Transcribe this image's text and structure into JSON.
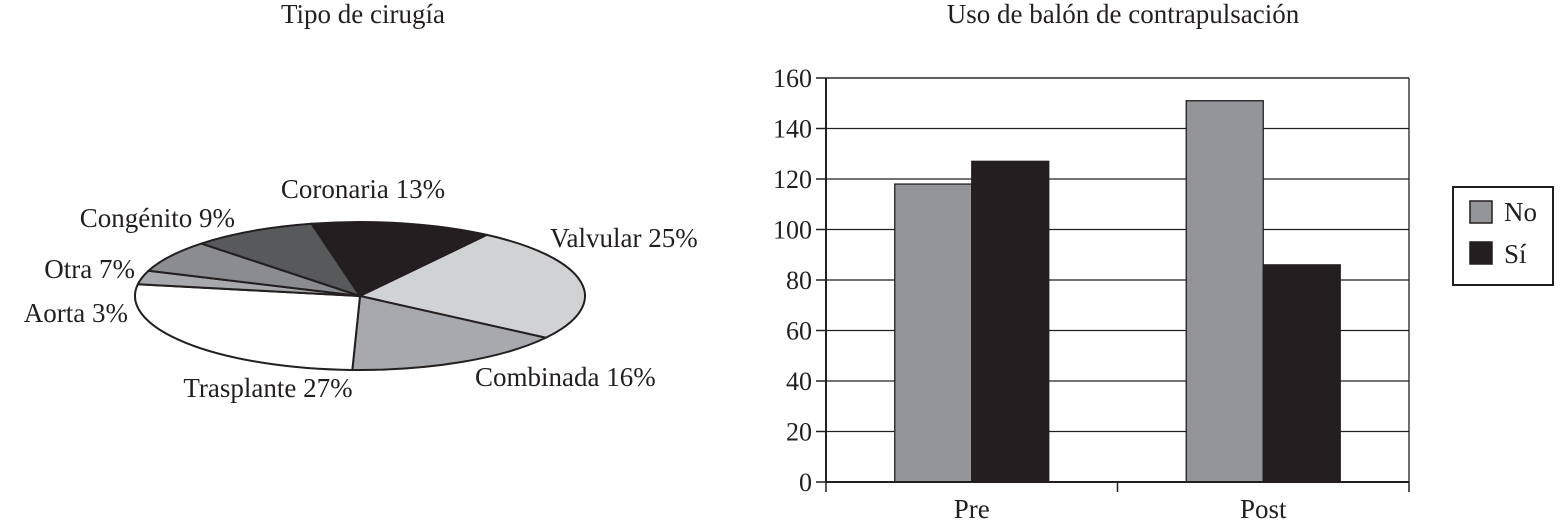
{
  "chart_data": [
    {
      "type": "pie",
      "title": "Tipo de cirugía",
      "slices": [
        {
          "label": "Coronaria 13%",
          "category": "Coronaria",
          "value": 13,
          "color": "#231f20"
        },
        {
          "label": "Valvular 25%",
          "category": "Valvular",
          "value": 25,
          "color": "#d1d2d4"
        },
        {
          "label": "Combinada 16%",
          "category": "Combinada",
          "value": 16,
          "color": "#a7a9ac"
        },
        {
          "label": "Trasplante 27%",
          "category": "Trasplante",
          "value": 27,
          "color": "#ffffff"
        },
        {
          "label": "Aorta 3%",
          "category": "Aorta",
          "value": 3,
          "color": "#a7a9ac"
        },
        {
          "label": "Otra 7%",
          "category": "Otra",
          "value": 7,
          "color": "#8a8c8f"
        },
        {
          "label": "Congénito 9%",
          "category": "Congénito",
          "value": 9,
          "color": "#58595b"
        }
      ],
      "style": "3d-tilted",
      "legend": "none"
    },
    {
      "type": "bar",
      "title": "Uso de balón de contrapulsación",
      "categories": [
        "Pre",
        "Post"
      ],
      "series": [
        {
          "name": "No",
          "values": [
            118,
            151
          ],
          "color": "#939598"
        },
        {
          "name": "Sí",
          "values": [
            127,
            86
          ],
          "color": "#231f20"
        }
      ],
      "ylim": [
        0,
        160
      ],
      "yticks": [
        0,
        20,
        40,
        60,
        80,
        100,
        120,
        140,
        160
      ],
      "xlabel": "",
      "ylabel": "",
      "grid": true,
      "legend": "right"
    }
  ]
}
